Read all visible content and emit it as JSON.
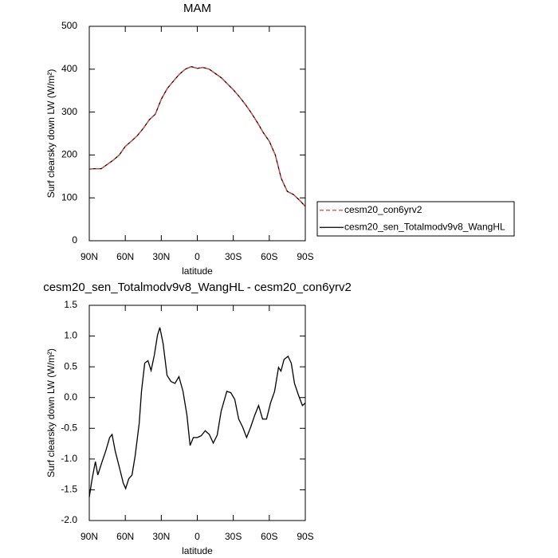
{
  "chart_data": [
    {
      "type": "line",
      "title": "MAM",
      "xlabel": "latitude",
      "ylabel": "Surf clearsky down LW (W/m²)",
      "x": [
        90,
        85,
        80,
        75,
        70,
        65,
        60,
        55,
        50,
        45,
        40,
        35,
        30,
        25,
        20,
        15,
        10,
        5,
        0,
        -5,
        -10,
        -15,
        -20,
        -25,
        -30,
        -35,
        -40,
        -45,
        -50,
        -55,
        -60,
        -65,
        -70,
        -75,
        -80,
        -85,
        -90
      ],
      "series": [
        {
          "name": "cesm20_con6yrv2",
          "color": "#e04040",
          "dashed": true,
          "values": [
            167,
            168,
            168,
            178,
            188,
            200,
            220,
            232,
            245,
            262,
            282,
            295,
            330,
            355,
            372,
            388,
            400,
            406,
            402,
            404,
            400,
            390,
            380,
            366,
            352,
            336,
            318,
            298,
            276,
            252,
            232,
            200,
            145,
            115,
            108,
            95,
            80
          ]
        },
        {
          "name": "cesm20_sen_Totalmodv9v8_WangHL",
          "color": "#000000",
          "dashed": false,
          "values": [
            167,
            168,
            168,
            178,
            188,
            200,
            220,
            232,
            245,
            262,
            282,
            295,
            330,
            355,
            372,
            388,
            400,
            406,
            402,
            404,
            400,
            390,
            380,
            366,
            352,
            336,
            318,
            298,
            276,
            252,
            232,
            200,
            145,
            115,
            108,
            95,
            80
          ]
        }
      ],
      "xlim": [
        90,
        -90
      ],
      "xticks": [
        {
          "value": 90,
          "label": "90N"
        },
        {
          "value": 60,
          "label": "60N"
        },
        {
          "value": 30,
          "label": "30N"
        },
        {
          "value": 0,
          "label": "0"
        },
        {
          "value": -30,
          "label": "30S"
        },
        {
          "value": -60,
          "label": "60S"
        },
        {
          "value": -90,
          "label": "90S"
        }
      ],
      "ylim": [
        0,
        500
      ],
      "yticks": [
        0,
        100,
        200,
        300,
        400,
        500
      ],
      "legend": "right"
    },
    {
      "type": "line",
      "title": "cesm20_sen_Totalmodv9v8_WangHL - cesm20_con6yrv2",
      "xlabel": "latitude",
      "ylabel": "Surf clearsky down LW (W/m²)",
      "x": [
        90,
        87.6,
        84.9,
        82.9,
        79.6,
        76.3,
        73,
        71,
        68.4,
        65,
        61.7,
        59.7,
        57.1,
        54.4,
        51.8,
        48.4,
        46.5,
        43.8,
        41.1,
        38.5,
        35.8,
        33.2,
        31.2,
        28.5,
        25.2,
        21.9,
        18.6,
        15.3,
        11.9,
        8.6,
        6,
        3.3,
        0,
        -3.3,
        -6.6,
        -10,
        -13.3,
        -16.6,
        -19.9,
        -24.6,
        -27.9,
        -31.2,
        -34.5,
        -37.8,
        -41.1,
        -44.5,
        -47.8,
        -51.1,
        -54.4,
        -57.7,
        -61,
        -64.4,
        -67.7,
        -69.7,
        -72.3,
        -75.6,
        -78.3,
        -81,
        -84.3,
        -87.6,
        -90
      ],
      "values": [
        -1.62,
        -1.32,
        -1.04,
        -1.26,
        -1.06,
        -0.87,
        -0.65,
        -0.6,
        -0.87,
        -1.13,
        -1.39,
        -1.48,
        -1.32,
        -1.26,
        -0.95,
        -0.42,
        0.1,
        0.56,
        0.6,
        0.44,
        0.69,
        1.01,
        1.14,
        0.88,
        0.36,
        0.26,
        0.23,
        0.34,
        0.1,
        -0.29,
        -0.78,
        -0.65,
        -0.65,
        -0.62,
        -0.54,
        -0.6,
        -0.74,
        -0.61,
        -0.22,
        0.1,
        0.08,
        -0.03,
        -0.35,
        -0.48,
        -0.65,
        -0.48,
        -0.29,
        -0.13,
        -0.35,
        -0.35,
        -0.09,
        0.1,
        0.49,
        0.43,
        0.62,
        0.67,
        0.56,
        0.23,
        0.04,
        -0.13,
        -0.09
      ],
      "color": "#000000",
      "xlim": [
        90,
        -90
      ],
      "xticks": [
        {
          "value": 90,
          "label": "90N"
        },
        {
          "value": 60,
          "label": "60N"
        },
        {
          "value": 30,
          "label": "30N"
        },
        {
          "value": 0,
          "label": "0"
        },
        {
          "value": -30,
          "label": "30S"
        },
        {
          "value": -60,
          "label": "60S"
        },
        {
          "value": -90,
          "label": "90S"
        }
      ],
      "ylim": [
        -2,
        1.5
      ],
      "yticks": [
        1.5,
        {
          "value": 1,
          "label": "1.0"
        },
        0.5,
        {
          "value": 0,
          "label": "0.0"
        },
        -0.5,
        {
          "value": -1,
          "label": "-1.0"
        },
        -1.5,
        {
          "value": -2,
          "label": "-2.0"
        }
      ]
    }
  ]
}
